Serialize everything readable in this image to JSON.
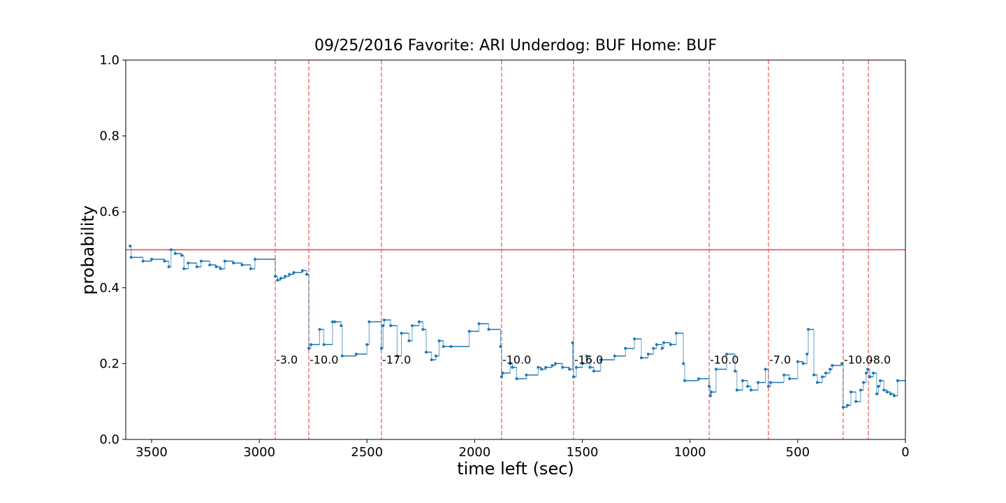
{
  "chart_data": {
    "type": "line",
    "drawstyle": "steps-post",
    "title": "09/25/2016 Favorite: ARI Underdog: BUF Home: BUF",
    "x_label": "time left (sec)",
    "y_label": "probability",
    "xlim": [
      3620,
      0
    ],
    "xticks": [
      3500,
      3000,
      2500,
      2000,
      1500,
      1000,
      500,
      0
    ],
    "ylim": [
      0,
      1
    ],
    "yticks": [
      {
        "value": 0,
        "label": "0.0"
      },
      0.2,
      0.4,
      0.6,
      0.8,
      {
        "value": 1,
        "label": "1.0"
      }
    ],
    "series": [
      {
        "color": "#1f77b4",
        "x": [
          3600,
          3595,
          3540,
          3500,
          3440,
          3420,
          3410,
          3390,
          3360,
          3350,
          3330,
          3290,
          3270,
          3230,
          3200,
          3180,
          3160,
          3120,
          3080,
          3040,
          3020,
          2926,
          2915,
          2900,
          2880,
          2860,
          2840,
          2800,
          2780,
          2770,
          2760,
          2720,
          2700,
          2660,
          2650,
          2620,
          2615,
          2550,
          2500,
          2490,
          2433,
          2425,
          2420,
          2390,
          2360,
          2340,
          2305,
          2290,
          2258,
          2240,
          2225,
          2200,
          2180,
          2165,
          2145,
          2110,
          2025,
          1980,
          1935,
          1880,
          1875,
          1870,
          1835,
          1825,
          1805,
          1760,
          1705,
          1690,
          1670,
          1640,
          1625,
          1592,
          1560,
          1545,
          1541,
          1528,
          1500,
          1480,
          1465,
          1447,
          1415,
          1350,
          1300,
          1258,
          1226,
          1194,
          1170,
          1155,
          1130,
          1122,
          1090,
          1064,
          1031,
          1025,
          960,
          911,
          905,
          902,
          879,
          830,
          791,
          782,
          756,
          733,
          717,
          684,
          650,
          636,
          626,
          564,
          538,
          500,
          475,
          457,
          451,
          425,
          409,
          386,
          370,
          350,
          340,
          295,
          289,
          269,
          253,
          230,
          208,
          195,
          182,
          175,
          165,
          149,
          133,
          125,
          117,
          100,
          85,
          68,
          52,
          36
        ],
        "values": [
          0.51,
          0.48,
          0.47,
          0.475,
          0.47,
          0.455,
          0.5,
          0.49,
          0.485,
          0.45,
          0.465,
          0.455,
          0.47,
          0.46,
          0.455,
          0.45,
          0.47,
          0.465,
          0.46,
          0.45,
          0.475,
          0.43,
          0.42,
          0.425,
          0.43,
          0.435,
          0.44,
          0.445,
          0.435,
          0.24,
          0.25,
          0.29,
          0.25,
          0.31,
          0.31,
          0.3,
          0.22,
          0.225,
          0.25,
          0.31,
          0.24,
          0.3,
          0.315,
          0.3,
          0.22,
          0.28,
          0.26,
          0.3,
          0.31,
          0.29,
          0.23,
          0.21,
          0.22,
          0.26,
          0.245,
          0.245,
          0.285,
          0.305,
          0.29,
          0.245,
          0.165,
          0.175,
          0.2,
          0.19,
          0.16,
          0.17,
          0.19,
          0.185,
          0.19,
          0.195,
          0.2,
          0.19,
          0.185,
          0.255,
          0.165,
          0.19,
          0.2,
          0.22,
          0.19,
          0.18,
          0.21,
          0.22,
          0.24,
          0.265,
          0.215,
          0.225,
          0.24,
          0.25,
          0.24,
          0.255,
          0.25,
          0.28,
          0.2,
          0.155,
          0.16,
          0.14,
          0.115,
          0.125,
          0.185,
          0.225,
          0.18,
          0.13,
          0.155,
          0.14,
          0.13,
          0.15,
          0.185,
          0.14,
          0.15,
          0.17,
          0.16,
          0.205,
          0.2,
          0.225,
          0.29,
          0.17,
          0.15,
          0.165,
          0.175,
          0.185,
          0.195,
          0.2,
          0.085,
          0.09,
          0.125,
          0.1,
          0.13,
          0.15,
          0.175,
          0.185,
          0.165,
          0.175,
          0.12,
          0.14,
          0.155,
          0.13,
          0.125,
          0.12,
          0.115,
          0.155
        ]
      }
    ],
    "hline": {
      "y": 0.5,
      "color": "#e8413f"
    },
    "vline_color": "#f26060",
    "annotations": [
      {
        "x": 2926,
        "y": 0.2,
        "label": "-3.0"
      },
      {
        "x": 2770,
        "y": 0.2,
        "label": "-10.0"
      },
      {
        "x": 2433,
        "y": 0.2,
        "label": "-17.0"
      },
      {
        "x": 1875,
        "y": 0.2,
        "label": "-10.0"
      },
      {
        "x": 1541,
        "y": 0.2,
        "label": "-16.0"
      },
      {
        "x": 911,
        "y": 0.2,
        "label": "-10.0"
      },
      {
        "x": 636,
        "y": 0.2,
        "label": "-7.0"
      },
      {
        "x": 289,
        "y": 0.2,
        "label": "-10.0"
      },
      {
        "x": 172,
        "y": 0.2,
        "label": "-8.0"
      }
    ]
  }
}
